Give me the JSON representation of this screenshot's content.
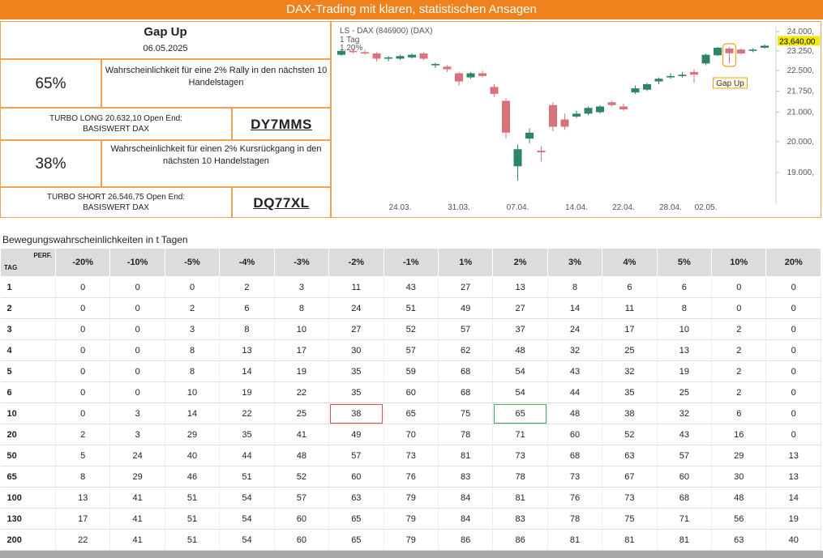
{
  "header": {
    "title": "DAX-Trading mit klaren, statistischen Ansagen"
  },
  "signal": {
    "title": "Gap Up",
    "date": "06.05.2025",
    "long": {
      "probability": "65%",
      "text": "Wahrscheinlichkeit für eine 2% Rally in den nächsten 10 Handelstagen",
      "product": [
        "TURBO LONG 20.632,10 Open End:",
        "BASISWERT DAX"
      ],
      "code": "DY7MMS"
    },
    "short": {
      "probability": "38%",
      "text": "Wahrscheinlichkeit für einen 2% Kursrückgang in den nächsten 10 Handelstagen",
      "product": [
        "TURBO SHORT 26.546,75 Open End:",
        "BASISWERT DAX"
      ],
      "code": "DQ77XL"
    }
  },
  "chart_data": {
    "type": "candlestick",
    "title": "LS - DAX (846900) (DAX)",
    "subtitle": [
      "1 Tag",
      "1.20%"
    ],
    "annotation": "Gap Up",
    "log_scale": true,
    "grid": false,
    "up_color": "#2e8467",
    "down_color": "#d9737b",
    "categories": [
      null,
      null,
      null,
      null,
      null,
      "24.03.",
      null,
      null,
      null,
      null,
      "31.03.",
      null,
      null,
      null,
      null,
      "07.04.",
      null,
      null,
      null,
      null,
      "14.04.",
      null,
      null,
      null,
      "22.04.",
      null,
      null,
      null,
      "28.04.",
      null,
      null,
      "02.05.",
      null,
      null,
      null,
      null,
      null
    ],
    "open": [
      23100,
      23250,
      23200,
      23150,
      22950,
      22950,
      23000,
      23150,
      22700,
      22650,
      22400,
      22250,
      22400,
      21900,
      21400,
      19200,
      20100,
      19700,
      21250,
      20750,
      20850,
      20950,
      21000,
      21350,
      21200,
      21700,
      21800,
      22100,
      22250,
      22300,
      22450,
      22770,
      23080,
      23340,
      23300,
      23250,
      23370
    ],
    "high": [
      23300,
      23350,
      23300,
      23200,
      23050,
      23100,
      23150,
      23200,
      22800,
      22700,
      22450,
      22450,
      22500,
      22000,
      21500,
      19900,
      20450,
      19850,
      21350,
      20950,
      21050,
      21200,
      21250,
      21400,
      21300,
      21950,
      22050,
      22250,
      22400,
      22450,
      22550,
      23150,
      23400,
      23400,
      23350,
      23350,
      23500
    ],
    "low": [
      23050,
      23150,
      23100,
      22850,
      22850,
      22900,
      22950,
      22900,
      22600,
      22450,
      21950,
      22200,
      22250,
      21550,
      20100,
      18750,
      19950,
      19350,
      20350,
      20400,
      20800,
      20900,
      20950,
      21200,
      21050,
      21650,
      21750,
      22000,
      22200,
      22250,
      22050,
      22700,
      23050,
      22780,
      23100,
      23200,
      23350
    ],
    "close": [
      23250,
      23200,
      23150,
      22950,
      23000,
      23050,
      23100,
      22950,
      22750,
      22550,
      22100,
      22400,
      22300,
      21650,
      20300,
      19750,
      20300,
      19650,
      20500,
      20500,
      20950,
      21150,
      21200,
      21250,
      21100,
      21850,
      22000,
      22200,
      22300,
      22350,
      22350,
      23100,
      23370,
      23160,
      23150,
      23300,
      23450
    ],
    "ylim": [
      18300,
      24200
    ],
    "yticks": [
      {
        "value": 24000,
        "label": "24.000,"
      },
      {
        "value": 23250,
        "label": "23.250,"
      },
      {
        "value": 22500,
        "label": "22.500,"
      },
      {
        "value": 21750,
        "label": "21.750,"
      },
      {
        "value": 21000,
        "label": "21.000,"
      },
      {
        "value": 20000,
        "label": "20.000,"
      },
      {
        "value": 19000,
        "label": "19.000,"
      }
    ],
    "last_price": {
      "value": 23640,
      "label": "23.640,00"
    }
  },
  "table": {
    "title": "Bewegungswahrscheinlichkeiten in t Tagen",
    "corner": [
      "TAG",
      "PERF."
    ],
    "columns": [
      "-20%",
      "-10%",
      "-5%",
      "-4%",
      "-3%",
      "-2%",
      "-1%",
      "1%",
      "2%",
      "3%",
      "4%",
      "5%",
      "10%",
      "20%"
    ],
    "rows": [
      {
        "t": 1,
        "values": [
          0,
          0,
          0,
          2,
          3,
          11,
          43,
          27,
          13,
          8,
          6,
          6,
          0,
          0
        ]
      },
      {
        "t": 2,
        "values": [
          0,
          0,
          2,
          6,
          8,
          24,
          51,
          49,
          27,
          14,
          11,
          8,
          0,
          0
        ]
      },
      {
        "t": 3,
        "values": [
          0,
          0,
          3,
          8,
          10,
          27,
          52,
          57,
          37,
          24,
          17,
          10,
          2,
          0
        ]
      },
      {
        "t": 4,
        "values": [
          0,
          0,
          8,
          13,
          17,
          30,
          57,
          62,
          48,
          32,
          25,
          13,
          2,
          0
        ]
      },
      {
        "t": 5,
        "values": [
          0,
          0,
          8,
          14,
          19,
          35,
          59,
          68,
          54,
          43,
          32,
          19,
          2,
          0
        ]
      },
      {
        "t": 6,
        "values": [
          0,
          0,
          10,
          19,
          22,
          35,
          60,
          68,
          54,
          44,
          35,
          25,
          2,
          0
        ]
      },
      {
        "t": 10,
        "values": [
          0,
          3,
          14,
          22,
          25,
          38,
          65,
          75,
          65,
          48,
          38,
          32,
          6,
          0
        ]
      },
      {
        "t": 20,
        "values": [
          2,
          3,
          29,
          35,
          41,
          49,
          70,
          78,
          71,
          60,
          52,
          43,
          16,
          0
        ]
      },
      {
        "t": 50,
        "values": [
          5,
          24,
          40,
          44,
          48,
          57,
          73,
          81,
          73,
          68,
          63,
          57,
          29,
          13
        ]
      },
      {
        "t": 65,
        "values": [
          8,
          29,
          46,
          51,
          52,
          60,
          76,
          83,
          78,
          73,
          67,
          60,
          30,
          13
        ]
      },
      {
        "t": 100,
        "values": [
          13,
          41,
          51,
          54,
          57,
          63,
          79,
          84,
          81,
          76,
          73,
          68,
          48,
          14
        ]
      },
      {
        "t": 130,
        "values": [
          17,
          41,
          51,
          54,
          60,
          65,
          79,
          84,
          83,
          78,
          75,
          71,
          56,
          19
        ]
      },
      {
        "t": 200,
        "values": [
          22,
          41,
          51,
          54,
          60,
          65,
          79,
          86,
          86,
          81,
          81,
          81,
          63,
          40
        ]
      }
    ]
  }
}
